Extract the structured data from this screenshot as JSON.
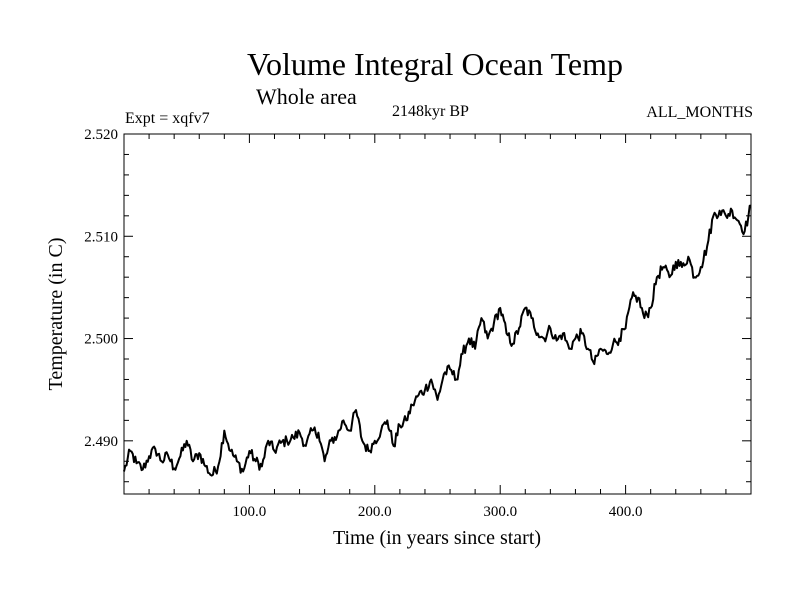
{
  "chart_data": {
    "type": "line",
    "title": "Volume Integral Ocean Temp",
    "subtitle": "Whole area",
    "annotations": {
      "experiment": "Expt = xqfv7",
      "epoch": "2148kyr BP",
      "months": "ALL_MONTHS"
    },
    "xlabel": "Time (in years since start)",
    "ylabel": "Temperature (in C)",
    "xlim": [
      0,
      500
    ],
    "ylim": [
      2.4848,
      2.52
    ],
    "x_ticks": [
      100,
      200,
      300,
      400
    ],
    "x_tick_labels": [
      "100.0",
      "200.0",
      "300.0",
      "400.0"
    ],
    "y_ticks": [
      2.49,
      2.5,
      2.51,
      2.52
    ],
    "y_tick_labels": [
      "2.490",
      "2.500",
      "2.510",
      "2.520"
    ],
    "grid": false,
    "series": [
      {
        "name": "Volume Integral Ocean Temp",
        "color": "#000000",
        "x": [
          0,
          5,
          10,
          15,
          20,
          25,
          30,
          35,
          40,
          45,
          50,
          55,
          60,
          65,
          70,
          75,
          80,
          85,
          90,
          95,
          100,
          105,
          110,
          115,
          120,
          125,
          130,
          135,
          140,
          145,
          150,
          155,
          160,
          165,
          170,
          175,
          180,
          185,
          190,
          195,
          200,
          205,
          210,
          215,
          220,
          225,
          230,
          235,
          240,
          245,
          250,
          255,
          260,
          265,
          270,
          275,
          280,
          285,
          290,
          295,
          300,
          305,
          310,
          315,
          320,
          325,
          330,
          335,
          340,
          345,
          350,
          355,
          360,
          365,
          370,
          375,
          380,
          385,
          390,
          395,
          400,
          405,
          410,
          415,
          420,
          425,
          430,
          435,
          440,
          445,
          450,
          455,
          460,
          465,
          470,
          475,
          480,
          485,
          490,
          495,
          500
        ],
        "values": [
          2.487,
          2.489,
          2.4878,
          2.4872,
          2.4885,
          2.4892,
          2.488,
          2.4886,
          2.4873,
          2.4885,
          2.49,
          2.488,
          2.4888,
          2.4875,
          2.4866,
          2.4875,
          2.491,
          2.489,
          2.488,
          2.487,
          2.489,
          2.488,
          2.4875,
          2.49,
          2.489,
          2.4898,
          2.49,
          2.4903,
          2.4908,
          2.4895,
          2.491,
          2.4908,
          2.488,
          2.49,
          2.4905,
          2.492,
          2.491,
          2.493,
          2.49,
          2.489,
          2.49,
          2.491,
          2.492,
          2.4895,
          2.4915,
          2.492,
          2.4935,
          2.4945,
          2.495,
          2.496,
          2.494,
          2.4965,
          2.497,
          2.496,
          2.4985,
          2.5,
          2.499,
          2.502,
          2.5,
          2.5015,
          2.503,
          2.5005,
          2.4995,
          2.501,
          2.503,
          2.502,
          2.5005,
          2.5,
          2.501,
          2.4998,
          2.5005,
          2.499,
          2.5,
          2.5005,
          2.499,
          2.4975,
          2.499,
          2.4985,
          2.4995,
          2.5,
          2.501,
          2.504,
          2.504,
          2.502,
          2.503,
          2.506,
          2.507,
          2.506,
          2.5075,
          2.507,
          2.508,
          2.506,
          2.507,
          2.509,
          2.512,
          2.5125,
          2.512,
          2.5125,
          2.5115,
          2.5105,
          2.513
        ]
      }
    ]
  }
}
